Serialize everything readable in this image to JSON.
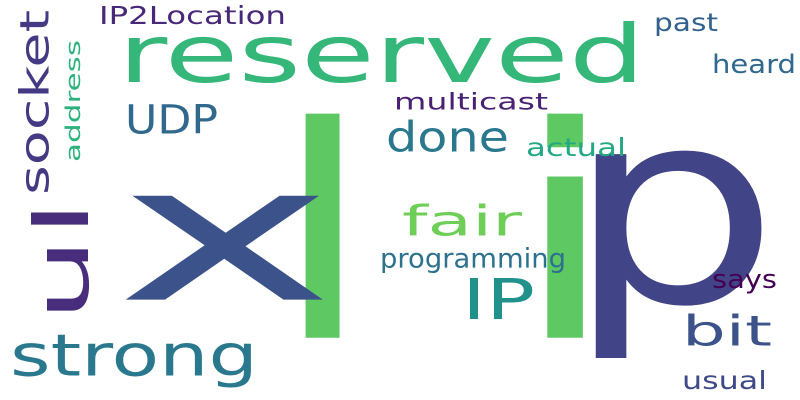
{
  "cloud": {
    "words": [
      {
        "text": "l",
        "color": "#5ec962"
      },
      {
        "text": "x",
        "color": "#3b528b"
      },
      {
        "text": "i",
        "color": "#5ec962"
      },
      {
        "text": "p",
        "color": "#414487"
      },
      {
        "text": "reserved",
        "color": "#35b779"
      },
      {
        "text": "ul",
        "color": "#472d7b"
      },
      {
        "text": "strong",
        "color": "#2a788e"
      },
      {
        "text": "IP",
        "color": "#21918c"
      },
      {
        "text": "UDP",
        "color": "#31688e"
      },
      {
        "text": "done",
        "color": "#2a788e"
      },
      {
        "text": "fair",
        "color": "#6ece58"
      },
      {
        "text": "bit",
        "color": "#3b528b"
      },
      {
        "text": "socket",
        "color": "#443983"
      },
      {
        "text": "multicast",
        "color": "#482173"
      },
      {
        "text": "programming",
        "color": "#2c728e"
      },
      {
        "text": "actual",
        "color": "#22a884"
      },
      {
        "text": "IP2Location",
        "color": "#482878"
      },
      {
        "text": "address",
        "color": "#2db27d"
      },
      {
        "text": "heard",
        "color": "#31688e"
      },
      {
        "text": "past",
        "color": "#33638d"
      },
      {
        "text": "says",
        "color": "#440154"
      },
      {
        "text": "usual",
        "color": "#3e4989"
      }
    ]
  }
}
